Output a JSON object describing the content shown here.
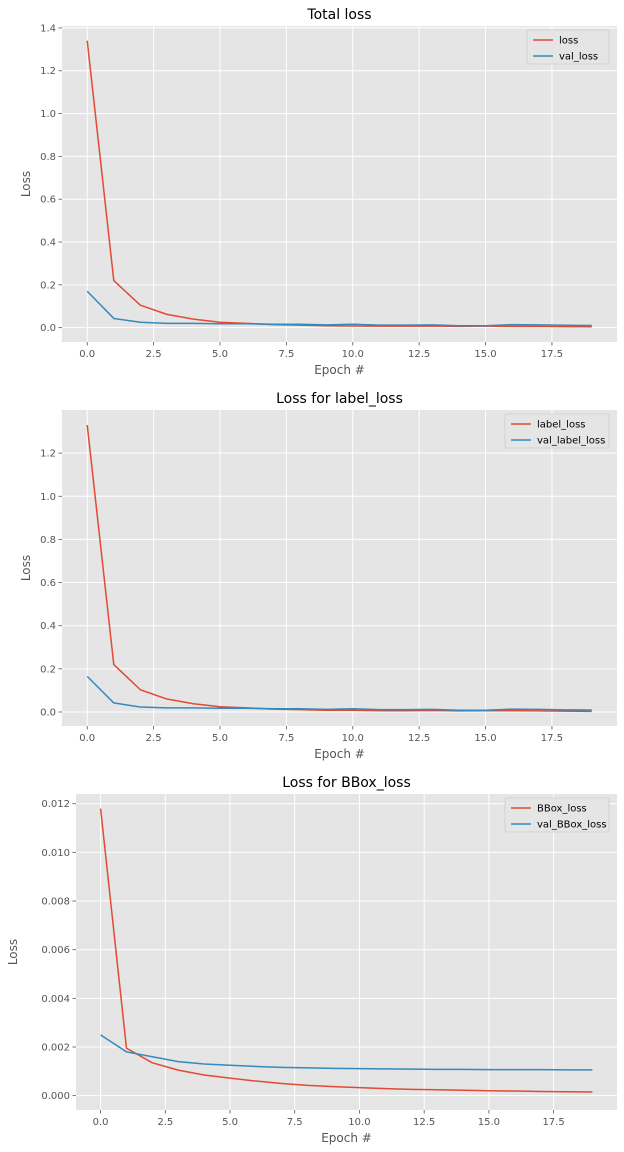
{
  "chart_data": [
    {
      "type": "line",
      "title": "Total loss",
      "xlabel": "Epoch #",
      "ylabel": "Loss",
      "xlim": [
        -0.95,
        19.95
      ],
      "ylim": [
        -0.067,
        1.409
      ],
      "xticks": [
        0,
        2.5,
        5,
        7.5,
        10,
        12.5,
        15,
        17.5
      ],
      "xtick_labels": [
        "0.0",
        "2.5",
        "5.0",
        "7.5",
        "10.0",
        "12.5",
        "15.0",
        "17.5"
      ],
      "yticks": [
        0,
        0.2,
        0.4,
        0.6,
        0.8,
        1.0,
        1.2,
        1.4
      ],
      "ytick_labels": [
        "0.0",
        "0.2",
        "0.4",
        "0.6",
        "0.8",
        "1.0",
        "1.2",
        "1.4"
      ],
      "grid": true,
      "legend": "top-right",
      "x": [
        0,
        1,
        2,
        3,
        4,
        5,
        6,
        7,
        8,
        9,
        10,
        11,
        12,
        13,
        14,
        15,
        16,
        17,
        18,
        19
      ],
      "series": [
        {
          "name": "loss",
          "color": "#E24A33",
          "values": [
            1.34,
            0.22,
            0.105,
            0.062,
            0.04,
            0.025,
            0.02,
            0.014,
            0.012,
            0.009,
            0.008,
            0.007,
            0.007,
            0.008,
            0.006,
            0.007,
            0.006,
            0.006,
            0.005,
            0.004
          ]
        },
        {
          "name": "val_loss",
          "color": "#348ABD",
          "values": [
            0.17,
            0.043,
            0.025,
            0.02,
            0.02,
            0.018,
            0.018,
            0.016,
            0.016,
            0.013,
            0.016,
            0.012,
            0.012,
            0.013,
            0.009,
            0.009,
            0.014,
            0.013,
            0.011,
            0.01
          ]
        }
      ]
    },
    {
      "type": "line",
      "title": "Loss for label_loss",
      "xlabel": "Epoch #",
      "ylabel": "Loss",
      "xlim": [
        -0.95,
        19.95
      ],
      "ylim": [
        -0.065,
        1.4
      ],
      "xticks": [
        0,
        2.5,
        5,
        7.5,
        10,
        12.5,
        15,
        17.5
      ],
      "xtick_labels": [
        "0.0",
        "2.5",
        "5.0",
        "7.5",
        "10.0",
        "12.5",
        "15.0",
        "17.5"
      ],
      "yticks": [
        0,
        0.2,
        0.4,
        0.6,
        0.8,
        1.0,
        1.2
      ],
      "ytick_labels": [
        "0.0",
        "0.2",
        "0.4",
        "0.6",
        "0.8",
        "1.0",
        "1.2"
      ],
      "grid": true,
      "legend": "top-right",
      "x": [
        0,
        1,
        2,
        3,
        4,
        5,
        6,
        7,
        8,
        9,
        10,
        11,
        12,
        13,
        14,
        15,
        16,
        17,
        18,
        19
      ],
      "series": [
        {
          "name": "label_loss",
          "color": "#E24A33",
          "values": [
            1.33,
            0.22,
            0.103,
            0.06,
            0.038,
            0.024,
            0.019,
            0.013,
            0.011,
            0.008,
            0.008,
            0.006,
            0.006,
            0.007,
            0.005,
            0.006,
            0.006,
            0.005,
            0.004,
            0.003
          ]
        },
        {
          "name": "val_label_loss",
          "color": "#348ABD",
          "values": [
            0.165,
            0.042,
            0.023,
            0.019,
            0.019,
            0.017,
            0.017,
            0.015,
            0.015,
            0.012,
            0.015,
            0.011,
            0.011,
            0.012,
            0.008,
            0.008,
            0.013,
            0.012,
            0.01,
            0.009
          ]
        }
      ]
    },
    {
      "type": "line",
      "title": "Loss for BBox_loss",
      "xlabel": "Epoch #",
      "ylabel": "Loss",
      "xlim": [
        -0.95,
        19.95
      ],
      "ylim": [
        -0.00059,
        0.0124
      ],
      "xticks": [
        0,
        2.5,
        5,
        7.5,
        10,
        12.5,
        15,
        17.5
      ],
      "xtick_labels": [
        "0.0",
        "2.5",
        "5.0",
        "7.5",
        "10.0",
        "12.5",
        "15.0",
        "17.5"
      ],
      "yticks": [
        0,
        0.002,
        0.004,
        0.006,
        0.008,
        0.01,
        0.012
      ],
      "ytick_labels": [
        "0.000",
        "0.002",
        "0.004",
        "0.006",
        "0.008",
        "0.010",
        "0.012"
      ],
      "grid": true,
      "legend": "top-right",
      "x": [
        0,
        1,
        2,
        3,
        4,
        5,
        6,
        7,
        8,
        9,
        10,
        11,
        12,
        13,
        14,
        15,
        16,
        17,
        18,
        19
      ],
      "series": [
        {
          "name": "BBox_loss",
          "color": "#E24A33",
          "values": [
            0.0118,
            0.00195,
            0.00135,
            0.00105,
            0.00085,
            0.00072,
            0.0006,
            0.0005,
            0.00042,
            0.00037,
            0.00033,
            0.00029,
            0.00026,
            0.00024,
            0.00022,
            0.0002,
            0.00019,
            0.00017,
            0.00016,
            0.00015
          ]
        },
        {
          "name": "val_BBox_loss",
          "color": "#348ABD",
          "values": [
            0.0025,
            0.0018,
            0.0016,
            0.0014,
            0.0013,
            0.00125,
            0.0012,
            0.00116,
            0.00114,
            0.00112,
            0.00111,
            0.0011,
            0.00109,
            0.00108,
            0.00108,
            0.00107,
            0.00107,
            0.00107,
            0.00106,
            0.00106
          ]
        }
      ]
    }
  ]
}
